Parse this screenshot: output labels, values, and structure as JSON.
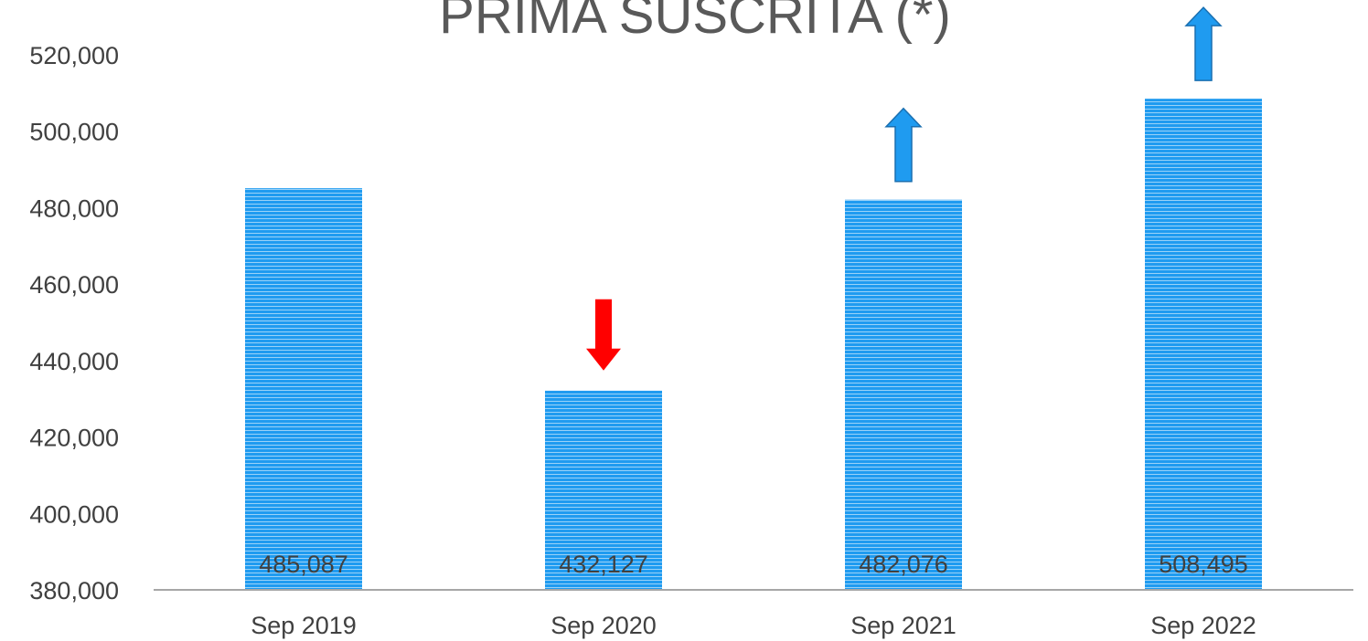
{
  "chart_data": {
    "type": "bar",
    "title": "PRIMA SUSCRITA (*)",
    "categories": [
      "Sep 2019",
      "Sep 2020",
      "Sep 2021",
      "Sep 2022"
    ],
    "values": [
      485087,
      432127,
      482076,
      508495
    ],
    "data_labels": [
      "485,087",
      "432,127",
      "482,076",
      "508,495"
    ],
    "ylim": [
      380000,
      520000
    ],
    "yticks": [
      380000,
      400000,
      420000,
      440000,
      460000,
      480000,
      500000,
      520000
    ],
    "ytick_labels": [
      "380,000",
      "400,000",
      "420,000",
      "440,000",
      "460,000",
      "480,000",
      "500,000",
      "520,000"
    ],
    "grid": false,
    "legend": "none",
    "bar_color": "#1f9bf0",
    "bar_stripe_color": "#ffffff",
    "axis_color": "#a6a6a6",
    "trend_arrows": [
      {
        "category": "Sep 2020",
        "direction": "down",
        "color": "#ff0000"
      },
      {
        "category": "Sep 2021",
        "direction": "up",
        "color": "#1f9bf0"
      },
      {
        "category": "Sep 2022",
        "direction": "up",
        "color": "#1f9bf0"
      }
    ]
  }
}
